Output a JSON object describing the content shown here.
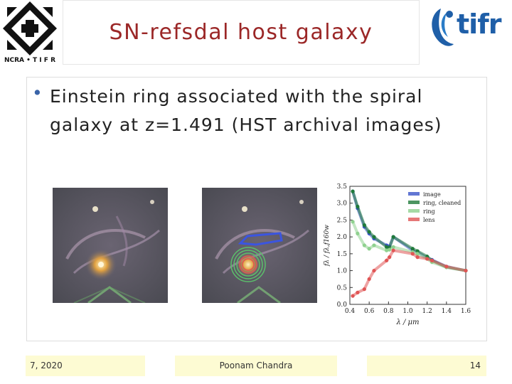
{
  "header": {
    "title": "SN-refsdal host galaxy",
    "logo_left_text": "NCRA • T I F R",
    "logo_right_text": "tifr"
  },
  "content": {
    "bullet_text": "Einstein ring associated with the spiral galaxy at z=1.491 (HST archival images)"
  },
  "chart_data": {
    "type": "line",
    "xlabel": "λ / μm",
    "ylabel": "fλ / fλ,f160w",
    "xlim": [
      0.4,
      1.6
    ],
    "ylim": [
      0,
      3.5
    ],
    "xticks": [
      "0.4",
      "0.6",
      "0.8",
      "1.0",
      "1.2",
      "1.4",
      "1.6"
    ],
    "yticks": [
      "0.0",
      "0.5",
      "1.0",
      "1.5",
      "2.0",
      "2.5",
      "3.0",
      "3.5"
    ],
    "legend": [
      "image",
      "ring, cleaned",
      "ring",
      "lens"
    ],
    "legend_position": "top-right",
    "colors": {
      "image": "#3b55c8",
      "ring, cleaned": "#1f7a3a",
      "ring": "#8fd18f",
      "lens": "#e05555"
    },
    "series": [
      {
        "name": "image",
        "x": [
          0.43,
          0.48,
          0.55,
          0.6,
          0.65,
          0.78,
          0.81,
          0.85,
          1.05,
          1.1,
          1.2,
          1.25,
          1.4,
          1.6
        ],
        "y": [
          3.35,
          2.85,
          2.3,
          2.1,
          1.95,
          1.75,
          1.72,
          2.0,
          1.6,
          1.55,
          1.38,
          1.32,
          1.12,
          1.0
        ]
      },
      {
        "name": "ring, cleaned",
        "x": [
          0.43,
          0.48,
          0.55,
          0.6,
          0.65,
          0.78,
          0.81,
          0.85,
          1.05,
          1.1,
          1.2,
          1.25,
          1.4,
          1.6
        ],
        "y": [
          3.35,
          2.9,
          2.35,
          2.15,
          2.0,
          1.7,
          1.68,
          2.0,
          1.65,
          1.58,
          1.42,
          1.3,
          1.1,
          1.0
        ]
      },
      {
        "name": "ring",
        "x": [
          0.43,
          0.48,
          0.55,
          0.6,
          0.65,
          0.78,
          0.81,
          0.85,
          1.05,
          1.1,
          1.2,
          1.25,
          1.4,
          1.6
        ],
        "y": [
          2.45,
          2.1,
          1.75,
          1.65,
          1.75,
          1.6,
          1.62,
          1.7,
          1.55,
          1.5,
          1.35,
          1.25,
          1.1,
          1.0
        ]
      },
      {
        "name": "lens",
        "x": [
          0.43,
          0.48,
          0.55,
          0.6,
          0.65,
          0.78,
          0.81,
          0.85,
          1.05,
          1.1,
          1.2,
          1.25,
          1.4,
          1.6
        ],
        "y": [
          0.25,
          0.35,
          0.45,
          0.75,
          1.0,
          1.3,
          1.4,
          1.6,
          1.5,
          1.4,
          1.35,
          1.3,
          1.12,
          1.0
        ]
      }
    ]
  },
  "footer": {
    "date": "7, 2020",
    "author": "Poonam Chandra",
    "page": "14"
  }
}
